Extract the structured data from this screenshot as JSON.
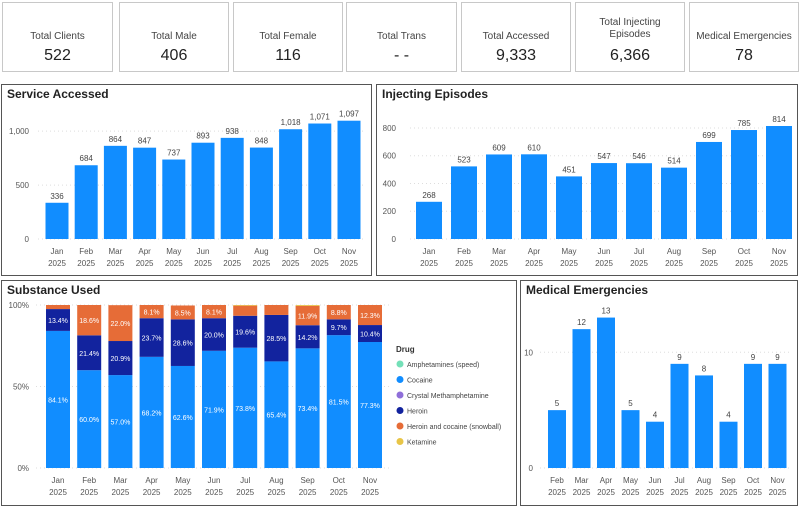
{
  "cards": [
    {
      "label": "Total Clients",
      "value": "522"
    },
    {
      "label": "Total Male",
      "value": "406"
    },
    {
      "label": "Total Female",
      "value": "116"
    },
    {
      "label": "Total Trans",
      "value": "- -"
    },
    {
      "label": "Total Accessed",
      "value": "9,333"
    },
    {
      "label": "Total Injecting Episodes",
      "value": "6,366"
    },
    {
      "label": "Medical Emergencies",
      "value": "78"
    }
  ],
  "panels": {
    "service": "Service Accessed",
    "injecting": "Injecting Episodes",
    "substance": "Substance Used",
    "medical": "Medical Emergencies"
  },
  "chart_data": [
    {
      "type": "bar",
      "title": "Service Accessed",
      "categories": [
        "Jan 2025",
        "Feb 2025",
        "Mar 2025",
        "Apr 2025",
        "May 2025",
        "Jun 2025",
        "Jul 2025",
        "Aug 2025",
        "Sep 2025",
        "Oct 2025",
        "Nov 2025"
      ],
      "values": [
        336,
        684,
        864,
        847,
        737,
        893,
        938,
        848,
        1018,
        1071,
        1097
      ],
      "value_labels": [
        "336",
        "684",
        "864",
        "847",
        "737",
        "893",
        "938",
        "848",
        "1,018",
        "1,071",
        "1,097"
      ],
      "yticks": [
        "0",
        "500",
        "1,000"
      ],
      "ylim": [
        0,
        1150
      ],
      "color": "#118DFF"
    },
    {
      "type": "bar",
      "title": "Injecting Episodes",
      "categories": [
        "Jan 2025",
        "Feb 2025",
        "Mar 2025",
        "Apr 2025",
        "May 2025",
        "Jun 2025",
        "Jul 2025",
        "Aug 2025",
        "Sep 2025",
        "Oct 2025",
        "Nov 2025"
      ],
      "values": [
        268,
        523,
        609,
        610,
        451,
        547,
        546,
        514,
        699,
        785,
        814
      ],
      "yticks": [
        "0",
        "200",
        "400",
        "600",
        "800"
      ],
      "ylim": [
        0,
        850
      ],
      "color": "#118DFF"
    },
    {
      "type": "bar",
      "stacked": "percent",
      "title": "Substance Used",
      "categories": [
        "Jan 2025",
        "Feb 2025",
        "Mar 2025",
        "Apr 2025",
        "May 2025",
        "Jun 2025",
        "Jul 2025",
        "Aug 2025",
        "Sep 2025",
        "Oct 2025",
        "Nov 2025"
      ],
      "yticks": [
        "0%",
        "50%",
        "100%"
      ],
      "legend_title": "Drug",
      "legend": "right",
      "series": [
        {
          "name": "Amphetamines (speed)",
          "color": "#74E0B8",
          "values": [
            0,
            0,
            0,
            0,
            0,
            0,
            0,
            0,
            0,
            0,
            0
          ]
        },
        {
          "name": "Cocaine",
          "color": "#118DFF",
          "values": [
            84.1,
            60.0,
            57.0,
            68.2,
            62.6,
            71.9,
            73.8,
            65.4,
            73.4,
            81.5,
            77.3
          ]
        },
        {
          "name": "Crystal Methamphetamine",
          "color": "#8F6FD9",
          "values": [
            0,
            0,
            0,
            0,
            0,
            0,
            0,
            0,
            0,
            0,
            0
          ]
        },
        {
          "name": "Heroin",
          "color": "#12239E",
          "values": [
            13.4,
            21.4,
            20.9,
            23.7,
            28.6,
            20.0,
            19.6,
            28.5,
            14.2,
            9.7,
            10.4
          ]
        },
        {
          "name": "Heroin and cocaine (snowball)",
          "color": "#E66C37",
          "values": [
            2.5,
            18.6,
            22.0,
            8.1,
            8.5,
            8.1,
            6.2,
            6.1,
            11.9,
            8.8,
            12.3
          ]
        },
        {
          "name": "Ketamine",
          "color": "#E8C547",
          "values": [
            0,
            0,
            0,
            0,
            0,
            0,
            0.4,
            0,
            0.5,
            0,
            0
          ]
        }
      ],
      "label_min": 8
    },
    {
      "type": "bar",
      "title": "Medical Emergencies",
      "categories": [
        "Feb 2025",
        "Mar 2025",
        "Apr 2025",
        "May 2025",
        "Jun 2025",
        "Jul 2025",
        "Aug 2025",
        "Sep 2025",
        "Oct 2025",
        "Nov 2025"
      ],
      "values": [
        5,
        12,
        13,
        5,
        4,
        9,
        8,
        4,
        9,
        9
      ],
      "yticks": [
        "0",
        "10"
      ],
      "ylim": [
        0,
        14
      ],
      "color": "#118DFF"
    }
  ]
}
